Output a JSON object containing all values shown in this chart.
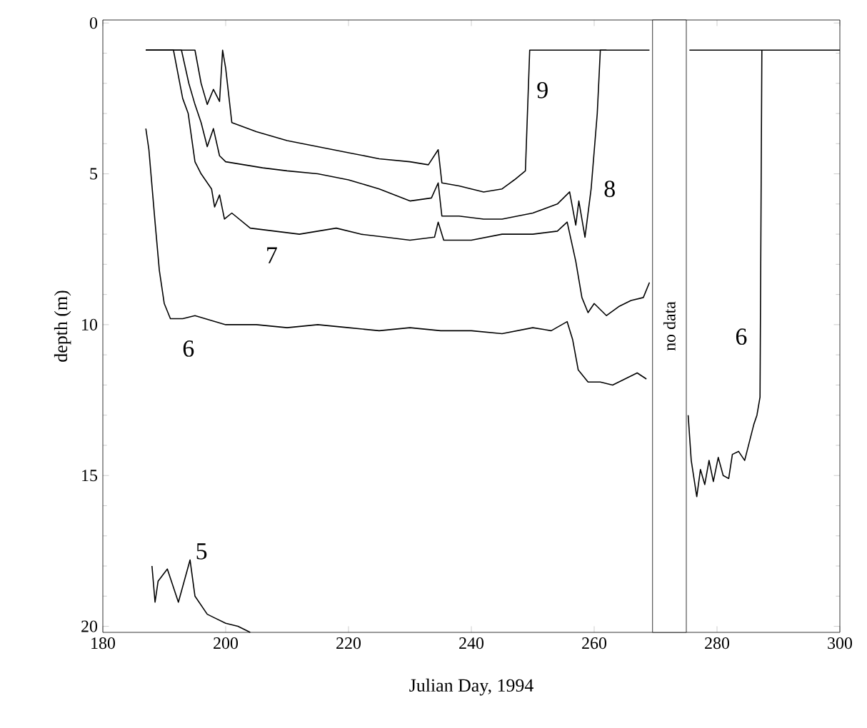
{
  "chart_data": {
    "type": "line",
    "xlabel": "Julian Day, 1994",
    "ylabel": "depth (m)",
    "xlim": [
      180,
      300
    ],
    "ylim": [
      20.2,
      -0.1
    ],
    "xticks": [
      180,
      200,
      220,
      240,
      260,
      280,
      300
    ],
    "yticks": [
      0,
      5,
      10,
      15,
      20
    ],
    "marker": "none",
    "line_style": "solid",
    "series": [
      {
        "name": "9",
        "color": "#000000",
        "x": [
          187,
          195,
          196,
          197,
          198,
          199,
          199.5,
          200,
          201,
          205,
          210,
          215,
          220,
          225,
          230,
          233,
          234.6,
          235.2,
          238,
          242,
          245,
          247,
          248.8,
          249.5,
          255,
          260,
          265,
          269,
          null,
          275.5,
          285,
          300
        ],
        "values": [
          0.9,
          0.9,
          2.0,
          2.7,
          2.2,
          2.6,
          0.9,
          1.5,
          3.3,
          3.6,
          3.9,
          4.1,
          4.3,
          4.5,
          4.6,
          4.7,
          4.2,
          5.3,
          5.4,
          5.6,
          5.5,
          5.2,
          4.9,
          0.9,
          0.9,
          0.9,
          0.9,
          0.9,
          null,
          0.9,
          0.9,
          0.9
        ]
      },
      {
        "name": "8",
        "color": "#000000",
        "x": [
          187,
          192.8,
          194,
          195,
          196,
          197,
          198,
          199,
          200,
          203,
          206,
          210,
          215,
          220,
          225,
          230,
          233.5,
          234.6,
          235.2,
          238,
          242,
          245,
          250,
          254,
          256,
          257,
          257.5,
          258.5,
          259.5,
          260.5,
          261,
          262
        ],
        "values": [
          0.9,
          0.9,
          2.0,
          2.7,
          3.3,
          4.1,
          3.5,
          4.4,
          4.6,
          4.7,
          4.8,
          4.9,
          5.0,
          5.2,
          5.5,
          5.9,
          5.8,
          5.3,
          6.4,
          6.4,
          6.5,
          6.5,
          6.3,
          6.0,
          5.6,
          6.7,
          5.9,
          7.1,
          5.5,
          3.0,
          0.9,
          0.9
        ]
      },
      {
        "name": "7",
        "color": "#000000",
        "x": [
          187,
          191.5,
          193,
          193.9,
          195,
          196,
          197.7,
          198.2,
          199,
          199.8,
          201,
          204,
          208,
          212,
          218,
          222,
          226,
          230,
          234,
          234.6,
          235.5,
          240,
          245,
          250,
          254,
          255.6,
          257,
          258,
          259,
          260,
          262,
          264,
          266,
          268,
          269
        ],
        "values": [
          0.9,
          0.9,
          2.5,
          3.0,
          4.6,
          5.0,
          5.5,
          6.1,
          5.7,
          6.5,
          6.3,
          6.8,
          6.9,
          7.0,
          6.8,
          7.0,
          7.1,
          7.2,
          7.1,
          6.6,
          7.2,
          7.2,
          7.0,
          7.0,
          6.9,
          6.6,
          7.9,
          9.1,
          9.6,
          9.3,
          9.7,
          9.4,
          9.2,
          9.1,
          8.6
        ]
      },
      {
        "name": "6",
        "color": "#000000",
        "x": [
          187,
          187.5,
          188.5,
          189.2,
          190,
          191,
          193,
          195,
          200,
          205,
          210,
          215,
          220,
          225,
          230,
          235,
          240,
          245,
          250,
          253,
          255.6,
          256.5,
          257.4,
          259,
          261,
          263,
          265,
          267,
          268.5
        ],
        "values": [
          3.5,
          4.2,
          6.6,
          8.2,
          9.3,
          9.8,
          9.8,
          9.7,
          10.0,
          10.0,
          10.1,
          10.0,
          10.1,
          10.2,
          10.1,
          10.2,
          10.2,
          10.3,
          10.1,
          10.2,
          9.9,
          10.5,
          11.5,
          11.9,
          11.9,
          12.0,
          11.8,
          11.6,
          11.8
        ]
      },
      {
        "name": "6",
        "color": "#000000",
        "x": [
          275.3,
          275.8,
          276.7,
          277.3,
          278,
          278.7,
          279.4,
          280.2,
          281,
          281.9,
          282.5,
          283.5,
          284.5,
          286,
          286.5,
          287,
          287.3
        ],
        "values": [
          13.0,
          14.5,
          15.7,
          14.8,
          15.3,
          14.5,
          15.2,
          14.4,
          15.0,
          15.1,
          14.3,
          14.2,
          14.5,
          13.3,
          13.0,
          12.4,
          0.9
        ]
      },
      {
        "name": "5",
        "color": "#000000",
        "x": [
          188,
          188.5,
          189,
          190.5,
          192.3,
          194.2,
          195,
          196,
          197,
          198,
          200,
          202,
          204
        ],
        "values": [
          18.0,
          19.2,
          18.5,
          18.1,
          19.2,
          17.8,
          19.0,
          19.3,
          19.6,
          19.7,
          19.9,
          20.0,
          20.2
        ]
      }
    ],
    "bands": [
      {
        "axis": "x",
        "from": 269.5,
        "to": 275.0,
        "label": "no data",
        "color": "#ffffff"
      }
    ]
  }
}
